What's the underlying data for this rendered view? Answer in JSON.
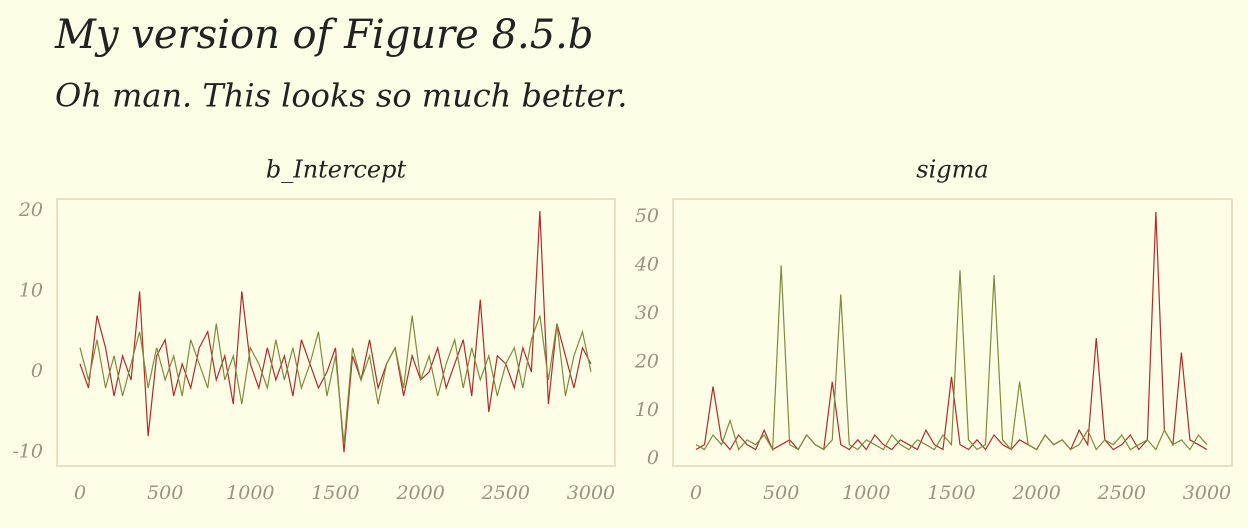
{
  "title": "My version of Figure 8.5.b",
  "subtitle": "Oh man. This looks so much better.",
  "chart_data": [
    {
      "type": "line",
      "title": "b_Intercept",
      "x": [
        0,
        50,
        100,
        150,
        200,
        250,
        300,
        350,
        400,
        450,
        500,
        550,
        600,
        650,
        700,
        750,
        800,
        850,
        900,
        950,
        1000,
        1050,
        1100,
        1150,
        1200,
        1250,
        1300,
        1350,
        1400,
        1450,
        1500,
        1550,
        1600,
        1650,
        1700,
        1750,
        1800,
        1850,
        1900,
        1950,
        2000,
        2050,
        2100,
        2150,
        2200,
        2250,
        2300,
        2350,
        2400,
        2450,
        2500,
        2550,
        2600,
        2650,
        2700,
        2750,
        2800,
        2850,
        2900,
        2950,
        3000
      ],
      "series": [
        {
          "color": "#b22a2a",
          "values": [
            1,
            -2,
            7,
            3,
            -3,
            2,
            -1,
            10,
            -8,
            2,
            4,
            -3,
            1,
            -2,
            3,
            5,
            -1,
            2,
            -4,
            10,
            1,
            -2,
            3,
            -1,
            2,
            -3,
            4,
            1,
            -2,
            0,
            3,
            -10,
            2,
            -1,
            4,
            -2,
            1,
            3,
            -3,
            2,
            -1,
            0,
            3,
            -2,
            1,
            4,
            -3,
            9,
            -5,
            2,
            1,
            -2,
            3,
            0,
            20,
            -4,
            6,
            2,
            -2,
            3,
            1
          ]
        },
        {
          "color": "#7d8c3c",
          "values": [
            3,
            -1,
            4,
            -2,
            2,
            -3,
            1,
            5,
            -2,
            3,
            -1,
            2,
            -3,
            4,
            1,
            -2,
            6,
            -1,
            2,
            -4,
            3,
            1,
            -2,
            4,
            -1,
            3,
            -2,
            1,
            5,
            -3,
            2,
            -9,
            3,
            -1,
            2,
            -4,
            1,
            3,
            -2,
            7,
            -1,
            2,
            -3,
            1,
            4,
            -2,
            3,
            -1,
            2,
            -3,
            1,
            3,
            -2,
            4,
            7,
            -1,
            6,
            -3,
            2,
            5,
            0
          ]
        }
      ],
      "xlim": [
        -135,
        3141
      ],
      "ylim": [
        -11.7,
        21.5
      ],
      "xticks": [
        0,
        500,
        1000,
        1500,
        2000,
        2500,
        3000
      ],
      "yticks": [
        -10,
        0,
        10,
        20
      ]
    },
    {
      "type": "line",
      "title": "sigma",
      "x": [
        0,
        50,
        100,
        150,
        200,
        250,
        300,
        350,
        400,
        450,
        500,
        550,
        600,
        650,
        700,
        750,
        800,
        850,
        900,
        950,
        1000,
        1050,
        1100,
        1150,
        1200,
        1250,
        1300,
        1350,
        1400,
        1450,
        1500,
        1550,
        1600,
        1650,
        1700,
        1750,
        1800,
        1850,
        1900,
        1950,
        2000,
        2050,
        2100,
        2150,
        2200,
        2250,
        2300,
        2350,
        2400,
        2450,
        2500,
        2550,
        2600,
        2650,
        2700,
        2750,
        2800,
        2850,
        2900,
        2950,
        3000
      ],
      "series": [
        {
          "color": "#b22a2a",
          "values": [
            2,
            3,
            15,
            4,
            2,
            5,
            3,
            2,
            6,
            2,
            3,
            4,
            2,
            5,
            3,
            2,
            16,
            3,
            2,
            4,
            2,
            5,
            3,
            2,
            4,
            3,
            2,
            6,
            3,
            2,
            17,
            3,
            2,
            4,
            2,
            5,
            3,
            2,
            4,
            3,
            2,
            5,
            3,
            4,
            2,
            6,
            3,
            25,
            4,
            2,
            3,
            5,
            2,
            4,
            51,
            6,
            3,
            22,
            4,
            3,
            2
          ]
        },
        {
          "color": "#7d8c3c",
          "values": [
            3,
            2,
            5,
            3,
            8,
            2,
            4,
            3,
            5,
            2,
            40,
            3,
            2,
            5,
            3,
            2,
            4,
            34,
            3,
            2,
            4,
            3,
            2,
            5,
            3,
            2,
            4,
            3,
            2,
            5,
            3,
            39,
            4,
            2,
            3,
            38,
            4,
            2,
            16,
            3,
            2,
            5,
            3,
            4,
            2,
            3,
            6,
            2,
            4,
            3,
            5,
            2,
            3,
            4,
            2,
            6,
            3,
            4,
            2,
            5,
            3
          ]
        }
      ],
      "xlim": [
        -135,
        3147
      ],
      "ylim": [
        -1.4,
        53.7
      ],
      "xticks": [
        0,
        500,
        1000,
        1500,
        2000,
        2500,
        3000
      ],
      "yticks": [
        0,
        10,
        20,
        30,
        40,
        50
      ]
    }
  ]
}
